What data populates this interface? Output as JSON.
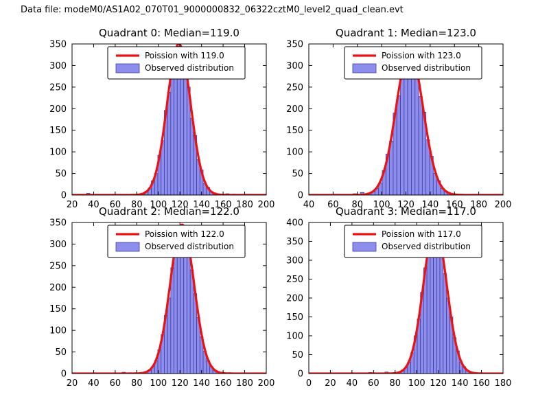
{
  "figure_title": "Data file: modeM0/AS1A02_070T01_9000000832_06322cztM0_level2_quad_clean.evt",
  "style": {
    "bar_fill": "#8d8deb",
    "bar_edge": "#3d3daa",
    "curve_color": "#ee1111",
    "axis_color": "#000000",
    "legend_bg": "#ffffff",
    "legend_border": "#000000",
    "background": "#ffffff"
  },
  "chart_data": [
    {
      "type": "bar",
      "title": "Quadrant 0: Median=119.0",
      "median": 119.0,
      "xlabel": "",
      "ylabel": "",
      "xlim": [
        20,
        200
      ],
      "ylim": [
        0,
        350
      ],
      "xticks": [
        20,
        40,
        60,
        80,
        100,
        120,
        140,
        160,
        180,
        200
      ],
      "yticks": [
        0,
        50,
        100,
        150,
        200,
        250,
        300,
        350
      ],
      "grid": false,
      "legend_position": "upper center",
      "legend": [
        "Poission with 119.0",
        "Observed distribution"
      ],
      "curve": {
        "name": "Poission with 119.0",
        "mean": 119.0,
        "amplitude": 350
      },
      "hist": {
        "name": "Observed distribution",
        "bin_width": 3,
        "x": [
          35,
          86,
          89,
          92,
          95,
          98,
          101,
          104,
          107,
          110,
          113,
          116,
          119,
          122,
          125,
          128,
          131,
          134,
          137,
          140,
          143,
          146,
          149,
          152,
          155,
          158,
          164,
          170
        ],
        "counts": [
          4,
          4,
          9,
          14,
          33,
          50,
          92,
          126,
          196,
          238,
          300,
          318,
          345,
          330,
          285,
          250,
          178,
          138,
          82,
          58,
          27,
          18,
          7,
          5,
          3,
          2,
          3,
          2
        ]
      }
    },
    {
      "type": "bar",
      "title": "Quadrant 1: Median=123.0",
      "median": 123.0,
      "xlabel": "",
      "ylabel": "",
      "xlim": [
        40,
        200
      ],
      "ylim": [
        0,
        350
      ],
      "xticks": [
        40,
        60,
        80,
        100,
        120,
        140,
        160,
        180,
        200
      ],
      "yticks": [
        0,
        50,
        100,
        150,
        200,
        250,
        300,
        350
      ],
      "grid": false,
      "legend_position": "upper center",
      "legend": [
        "Poission with 123.0",
        "Observed distribution"
      ],
      "curve": {
        "name": "Poission with 123.0",
        "mean": 123.0,
        "amplitude": 335
      },
      "hist": {
        "name": "Observed distribution",
        "bin_width": 3,
        "x": [
          78,
          84,
          90,
          93,
          96,
          99,
          102,
          105,
          108,
          111,
          114,
          117,
          120,
          123,
          126,
          129,
          132,
          135,
          138,
          141,
          144,
          147,
          150,
          153,
          156,
          159,
          165
        ],
        "counts": [
          3,
          6,
          5,
          7,
          15,
          28,
          57,
          95,
          125,
          190,
          230,
          295,
          335,
          305,
          330,
          280,
          228,
          192,
          128,
          90,
          50,
          33,
          15,
          9,
          4,
          3,
          2
        ]
      }
    },
    {
      "type": "bar",
      "title": "Quadrant 2: Median=122.0",
      "median": 122.0,
      "xlabel": "",
      "ylabel": "",
      "xlim": [
        20,
        200
      ],
      "ylim": [
        0,
        350
      ],
      "xticks": [
        20,
        40,
        60,
        80,
        100,
        120,
        140,
        160,
        180,
        200
      ],
      "yticks": [
        0,
        50,
        100,
        150,
        200,
        250,
        300,
        350
      ],
      "grid": false,
      "legend_position": "upper center",
      "legend": [
        "Poission with 122.0",
        "Observed distribution"
      ],
      "curve": {
        "name": "Poission with 122.0",
        "mean": 122.0,
        "amplitude": 345
      },
      "hist": {
        "name": "Observed distribution",
        "bin_width": 3,
        "x": [
          68,
          74,
          89,
          92,
          95,
          98,
          101,
          104,
          107,
          110,
          113,
          116,
          119,
          122,
          125,
          128,
          131,
          134,
          137,
          140,
          143,
          146,
          149,
          152,
          155,
          158,
          161,
          167
        ],
        "counts": [
          3,
          2,
          4,
          8,
          16,
          30,
          55,
          90,
          135,
          175,
          245,
          290,
          330,
          340,
          320,
          285,
          240,
          185,
          130,
          85,
          52,
          30,
          16,
          8,
          4,
          3,
          2,
          2
        ]
      }
    },
    {
      "type": "bar",
      "title": "Quadrant 3: Median=117.0",
      "median": 117.0,
      "xlabel": "",
      "ylabel": "",
      "xlim": [
        0,
        180
      ],
      "ylim": [
        0,
        400
      ],
      "xticks": [
        0,
        20,
        40,
        60,
        80,
        100,
        120,
        140,
        160,
        180
      ],
      "yticks": [
        0,
        50,
        100,
        150,
        200,
        250,
        300,
        350,
        400
      ],
      "grid": false,
      "legend_position": "upper center",
      "legend": [
        "Poission with 117.0",
        "Observed distribution"
      ],
      "curve": {
        "name": "Poission with 117.0",
        "mean": 117.0,
        "amplitude": 390
      },
      "hist": {
        "name": "Observed distribution",
        "bin_width": 3,
        "x": [
          57,
          66,
          72,
          84,
          87,
          90,
          93,
          96,
          99,
          102,
          105,
          108,
          111,
          114,
          117,
          120,
          123,
          126,
          129,
          132,
          135,
          138,
          141,
          144,
          147,
          150,
          153,
          159
        ],
        "counts": [
          3,
          2,
          4,
          4,
          9,
          15,
          30,
          55,
          100,
          145,
          215,
          280,
          310,
          350,
          380,
          360,
          325,
          265,
          200,
          150,
          95,
          60,
          30,
          18,
          8,
          4,
          3,
          2
        ]
      }
    }
  ]
}
